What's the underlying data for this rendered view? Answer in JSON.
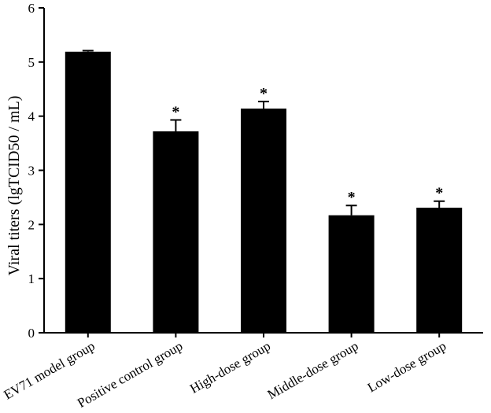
{
  "chart_data": {
    "type": "bar",
    "title": "",
    "xlabel": "",
    "ylabel": "Viral titers (lgTCID50 / mL)",
    "ylim": [
      0,
      6
    ],
    "yticks": [
      0,
      1,
      2,
      3,
      4,
      5,
      6
    ],
    "grid": false,
    "legend": "none",
    "bar_color": "#000000",
    "categories": [
      "EV71 model group",
      "Positive control group",
      "High-dose group",
      "Middle-dose group",
      "Low-dose group"
    ],
    "values": [
      5.19,
      3.72,
      4.14,
      2.17,
      2.31
    ],
    "error": [
      0.02,
      0.21,
      0.13,
      0.18,
      0.12
    ],
    "annotations": [
      "",
      "*",
      "*",
      "*",
      "*"
    ]
  }
}
